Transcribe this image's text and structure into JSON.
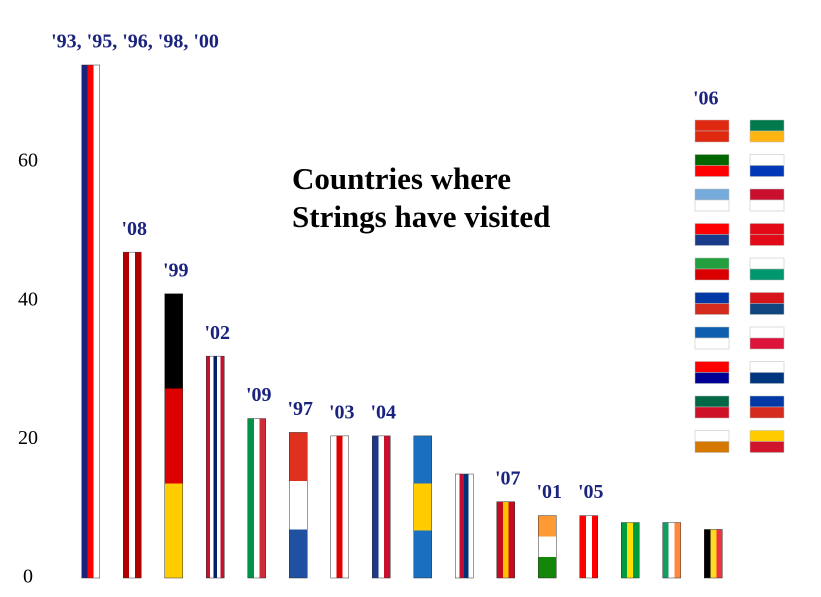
{
  "chart_data": {
    "type": "bar",
    "annotation": [
      "Countries where",
      "Strings have visited"
    ],
    "categories": [
      "'93, '95, '96, '98, '00",
      "'08",
      "'99",
      "'02",
      "'09",
      "'97",
      "'03",
      "'04",
      null,
      null,
      "'07",
      "'01",
      "'05",
      null,
      null,
      null
    ],
    "values": [
      74,
      47,
      41,
      32,
      23,
      21,
      20.5,
      20.5,
      20.5,
      15,
      11,
      9,
      9,
      8,
      8,
      7
    ],
    "colors": [
      [
        "#1a237e",
        "#ff0000",
        "#ffffff"
      ],
      [
        "#b00000",
        "#ffffff",
        "#b00000"
      ],
      [
        "#000000",
        "#dd0000",
        "#ffcc00"
      ],
      [
        "#c8102e",
        "#ffffff",
        "#012169",
        "#ffffff",
        "#c8102e"
      ],
      [
        "#009246",
        "#ffffff",
        "#ce2b37"
      ],
      [
        "#e03020",
        "#ffffff",
        "#2050a0"
      ],
      [
        "#ffffff",
        "#e00000",
        "#ffffff"
      ],
      [
        "#1e3a8a",
        "#ffffff",
        "#c8102e"
      ],
      [
        "#1a6fc0",
        "#ffcc00",
        "#1a6fc0"
      ],
      [
        "#ffffff",
        "#c60c30",
        "#003478",
        "#ffffff"
      ],
      [
        "#c60b1e",
        "#ffc400",
        "#c60b1e"
      ],
      [
        "#ff9933",
        "#ffffff",
        "#138808"
      ],
      [
        "#ff0000",
        "#ffffff",
        "#ff0000"
      ],
      [
        "#009c3b",
        "#ffdf00",
        "#009c3b"
      ],
      [
        "#169b62",
        "#ffffff",
        "#ff883e"
      ],
      [
        "#000000",
        "#fdda24",
        "#ef3340"
      ]
    ],
    "stripe_direction": [
      "x",
      "x",
      "y",
      "x",
      "x",
      "y",
      "x",
      "x",
      "y",
      "x",
      "x",
      "y",
      "x",
      "x",
      "x",
      "x"
    ],
    "group_label": "'06",
    "ylim": [
      0,
      74
    ],
    "yticks": [
      0,
      20,
      40,
      60
    ],
    "grid": false
  }
}
